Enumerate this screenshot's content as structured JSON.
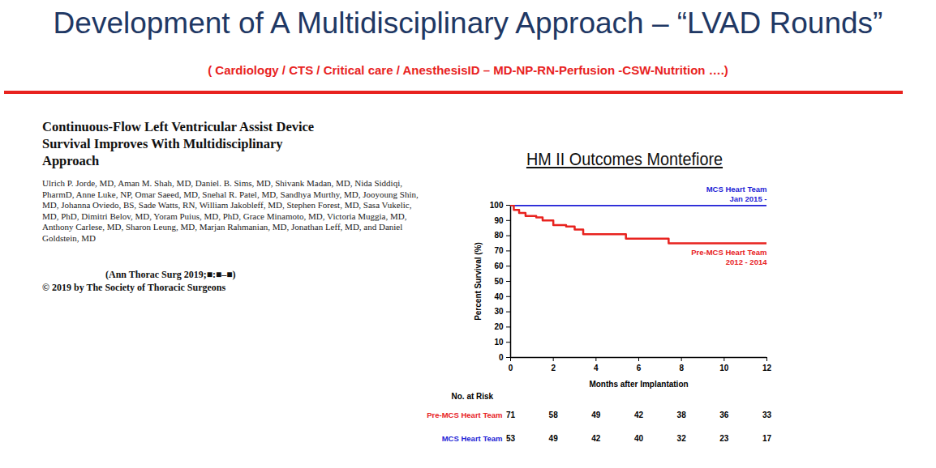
{
  "slide": {
    "title": "Development of A Multidisciplinary Approach – “LVAD Rounds”",
    "subtitle": "( Cardiology / CTS / Critical care / AnesthesisID – MD-NP-RN-Perfusion -CSW-Nutrition ….)"
  },
  "paper": {
    "title": "Continuous-Flow Left Ventricular Assist Device Survival Improves With Multidisciplinary Approach",
    "authors": "Ulrich P. Jorde, MD, Aman M. Shah, MD, Daniel. B. Sims, MD, Shivank Madan, MD, Nida Siddiqi, PharmD, Anne Luke, NP, Omar Saeed, MD, Snehal R. Patel, MD, Sandhya Murthy, MD, Jooyoung Shin, MD, Johanna Oviedo, BS, Sade Watts, RN, William Jakobleff, MD, Stephen Forest, MD, Sasa Vukelic, MD, PhD, Dimitri Belov, MD, Yoram Puius, MD, PhD, Grace Minamoto, MD, Victoria Muggia, MD, Anthony Carlese, MD, Sharon Leung, MD, Marjan Rahmanian, MD, Jonathan Leff, MD, and Daniel Goldstein, MD",
    "citation": "(Ann Thorac Surg 2019;■:■–■)",
    "copyright": "© 2019 by The Society of Thoracic Surgeons"
  },
  "chart_data": {
    "type": "line",
    "title": "HM II Outcomes Montefiore",
    "x_label": "Months after Implantation",
    "y_label": "Percent Survival (%)",
    "xlim": [
      0,
      12
    ],
    "xticks": [
      0,
      2,
      4,
      6,
      8,
      10,
      12
    ],
    "ylim": [
      0,
      100
    ],
    "yticks": [
      0,
      10,
      20,
      30,
      40,
      50,
      60,
      70,
      80,
      90,
      100
    ],
    "line_style": "step",
    "series": [
      {
        "name": "MCS Heart Team",
        "period": "Jan 2015 -",
        "color": "#1f1fd6",
        "x": [
          0,
          12
        ],
        "values": [
          100,
          100
        ]
      },
      {
        "name": "Pre-MCS Heart Team",
        "period": "2012 - 2014",
        "color": "#e8231f",
        "x": [
          0,
          0.15,
          0.4,
          0.7,
          1.2,
          1.5,
          2.0,
          2.6,
          3.0,
          3.4,
          5.4,
          7.4,
          12
        ],
        "values": [
          100,
          97,
          95,
          93,
          92,
          90,
          87,
          86,
          84,
          81,
          78,
          75,
          75
        ]
      }
    ],
    "at_risk": {
      "title": "No. at Risk",
      "x": [
        0,
        2,
        4,
        6,
        8,
        10,
        12
      ],
      "rows": [
        {
          "name": "Pre-MCS Heart Team",
          "values": [
            71,
            58,
            49,
            42,
            38,
            36,
            33
          ]
        },
        {
          "name": "MCS Heart Team",
          "values": [
            53,
            49,
            42,
            40,
            32,
            23,
            17
          ]
        }
      ]
    }
  }
}
